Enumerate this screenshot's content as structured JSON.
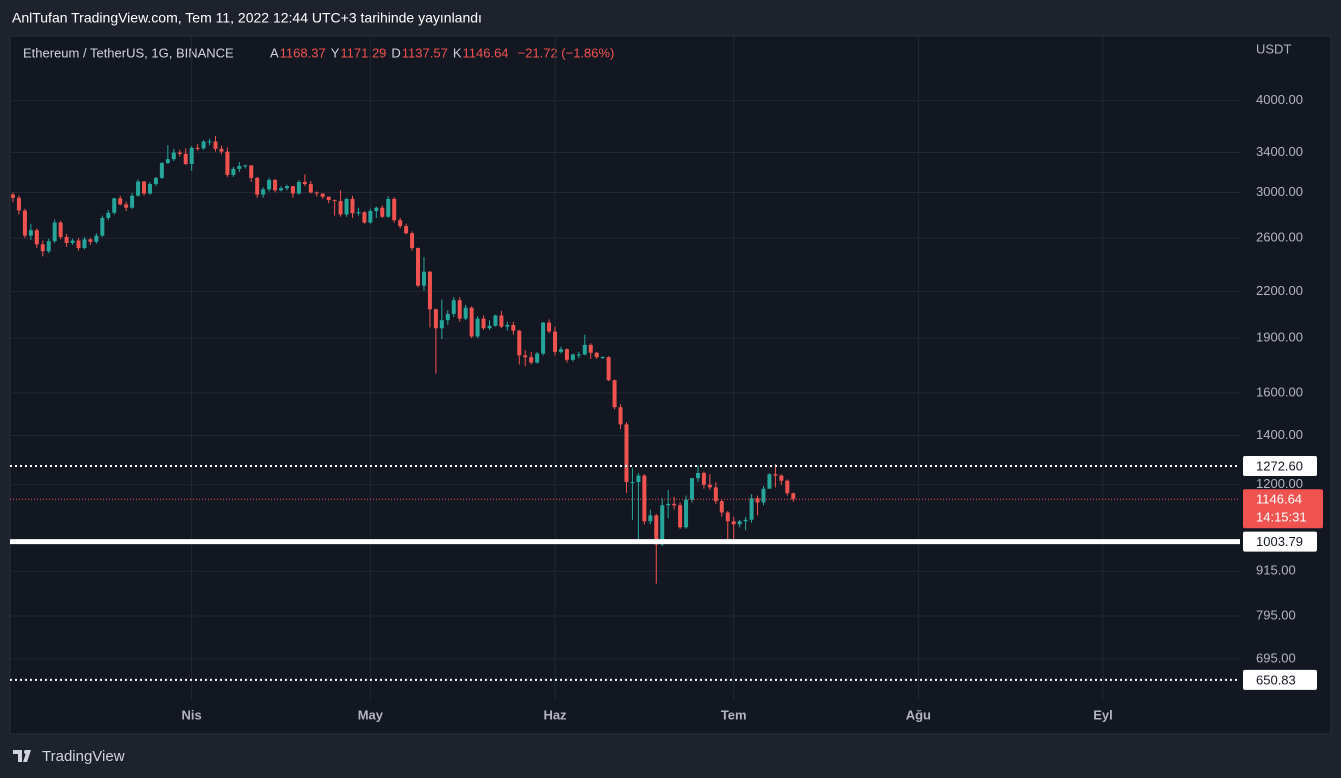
{
  "header": {
    "text": "AnlTufan TradingView.com, Tem 11, 2022 12:44 UTC+3 tarihinde yayınlandı"
  },
  "footer": {
    "brand": "TradingView"
  },
  "chart_data": {
    "type": "candlestick",
    "symbol": "Ethereum / TetherUS, 1G, BINANCE",
    "ohlc_legend": [
      {
        "key": "A",
        "value": "1168.37"
      },
      {
        "key": "Y",
        "value": "1171.29"
      },
      {
        "key": "D",
        "value": "1137.57"
      },
      {
        "key": "K",
        "value": "1146.64"
      }
    ],
    "change": "−21.72 (−1.86%)",
    "y_unit": "USDT",
    "log_scale": true,
    "grid": true,
    "up_color": "#26a69a",
    "down_color": "#ef5350",
    "xlim": [
      -0.5,
      206
    ],
    "xticks": [
      {
        "value": 30,
        "label": "Nis"
      },
      {
        "value": 60,
        "label": "May"
      },
      {
        "value": 91,
        "label": "Haz"
      },
      {
        "value": 121,
        "label": "Tem"
      },
      {
        "value": 152,
        "label": "Ağu"
      },
      {
        "value": 183,
        "label": "Eyl"
      }
    ],
    "ylim": [
      611,
      4915
    ],
    "yticks": [
      {
        "value": 4000,
        "label": "4000.00"
      },
      {
        "value": 3400,
        "label": "3400.00"
      },
      {
        "value": 3000,
        "label": "3000.00"
      },
      {
        "value": 2600,
        "label": "2600.00"
      },
      {
        "value": 2200,
        "label": "2200.00"
      },
      {
        "value": 1900,
        "label": "1900.00"
      },
      {
        "value": 1600,
        "label": "1600.00"
      },
      {
        "value": 1400,
        "label": "1400.00"
      },
      {
        "value": 1200,
        "label": "1200.00"
      },
      {
        "value": 915,
        "label": "915.00"
      },
      {
        "value": 795,
        "label": "795.00"
      },
      {
        "value": 695,
        "label": "695.00"
      }
    ],
    "hlines": [
      {
        "value": 1272.6,
        "label": "1272.60",
        "style": "dotted"
      },
      {
        "value": 1003.79,
        "style": "solid"
      },
      {
        "value": 650.83,
        "style": "dotted"
      }
    ],
    "last": {
      "value": 1146.64,
      "countdown": "14:15:31"
    },
    "open": [
      2980,
      2950,
      2835,
      2620,
      2665,
      2550,
      2495,
      2575,
      2730,
      2610,
      2560,
      2580,
      2520,
      2590,
      2570,
      2620,
      2770,
      2815,
      2945,
      2890,
      2860,
      2970,
      3105,
      2990,
      3080,
      3140,
      3290,
      3330,
      3400,
      3385,
      3280,
      3450,
      3445,
      3520,
      3520,
      3440,
      3410,
      3170,
      3230,
      3260,
      3265,
      3140,
      2980,
      3030,
      3120,
      3020,
      3040,
      3060,
      2990,
      3100,
      3080,
      3000,
      2990,
      2960,
      2930,
      2920,
      2800,
      2940,
      2810,
      2820,
      2730,
      2830,
      2860,
      2780,
      2940,
      2750,
      2700,
      2640,
      2520,
      2240,
      2340,
      2080,
      1960,
      2010,
      2050,
      2140,
      2020,
      2090,
      1910,
      2020,
      1960,
      1975,
      2040,
      1970,
      1980,
      1945,
      1800,
      1790,
      1760,
      1810,
      1995,
      1940,
      1820,
      1835,
      1775,
      1805,
      1805,
      1860,
      1815,
      1790,
      1790,
      1665,
      1530,
      1450,
      1210,
      1210,
      1235,
      1070,
      1090,
      995,
      1125,
      1130,
      1125,
      1050,
      1145,
      1225,
      1245,
      1200,
      1190,
      1140,
      1100,
      1070,
      1060,
      1070,
      1075,
      1150,
      1135,
      1185,
      1240,
      1235,
      1215,
      1168.37
    ],
    "high": [
      3000,
      2970,
      2850,
      2720,
      2680,
      2580,
      2595,
      2755,
      2745,
      2635,
      2595,
      2600,
      2610,
      2600,
      2640,
      2790,
      2840,
      2950,
      2970,
      2915,
      2995,
      3125,
      3110,
      3100,
      3150,
      3300,
      3480,
      3440,
      3430,
      3445,
      3470,
      3490,
      3535,
      3550,
      3580,
      3475,
      3455,
      3250,
      3300,
      3275,
      3270,
      3150,
      3050,
      3140,
      3130,
      3060,
      3075,
      3060,
      3120,
      3175,
      3110,
      3010,
      2990,
      2960,
      2935,
      3020,
      2950,
      2970,
      2860,
      2830,
      2850,
      2870,
      2880,
      2965,
      2955,
      2770,
      2720,
      2655,
      2525,
      2450,
      2345,
      2085,
      2145,
      2075,
      2160,
      2160,
      2110,
      2100,
      2035,
      2040,
      2010,
      2045,
      2070,
      2000,
      2000,
      1950,
      1830,
      1820,
      1820,
      2000,
      2015,
      1970,
      1850,
      1840,
      1810,
      1820,
      1920,
      1870,
      1820,
      1795,
      1795,
      1670,
      1545,
      1460,
      1265,
      1245,
      1240,
      1110,
      1095,
      1150,
      1180,
      1155,
      1135,
      1160,
      1225,
      1275,
      1250,
      1240,
      1210,
      1145,
      1105,
      1085,
      1075,
      1085,
      1165,
      1160,
      1195,
      1245,
      1280,
      1240,
      1220,
      1171.29
    ],
    "low": [
      2910,
      2800,
      2600,
      2585,
      2520,
      2455,
      2480,
      2560,
      2590,
      2530,
      2545,
      2500,
      2510,
      2545,
      2555,
      2610,
      2750,
      2800,
      2880,
      2830,
      2850,
      2960,
      2970,
      2980,
      3060,
      3130,
      3280,
      3310,
      3360,
      3270,
      3210,
      3420,
      3430,
      3480,
      3410,
      3380,
      3150,
      3150,
      3200,
      3235,
      3100,
      2950,
      2950,
      3010,
      3000,
      3010,
      3020,
      2950,
      2980,
      3060,
      2990,
      2960,
      2940,
      2900,
      2790,
      2780,
      2780,
      2770,
      2790,
      2720,
      2720,
      2770,
      2770,
      2770,
      2730,
      2680,
      2630,
      2500,
      2230,
      2205,
      1965,
      1700,
      1895,
      1980,
      2030,
      2000,
      2010,
      1900,
      1900,
      1950,
      1950,
      1970,
      1960,
      1945,
      1920,
      1750,
      1740,
      1750,
      1755,
      1800,
      1930,
      1800,
      1810,
      1760,
      1765,
      1785,
      1800,
      1780,
      1780,
      1780,
      1660,
      1520,
      1430,
      1170,
      1075,
      1010,
      1060,
      1060,
      880,
      990,
      1080,
      1110,
      1045,
      1045,
      1135,
      1210,
      1185,
      1180,
      1130,
      1085,
      1005,
      1000,
      1050,
      1040,
      1065,
      1090,
      1125,
      1185,
      1190,
      1200,
      1160,
      1137.57
    ],
    "close": [
      2950,
      2835,
      2620,
      2665,
      2550,
      2495,
      2575,
      2730,
      2610,
      2560,
      2580,
      2520,
      2590,
      2570,
      2620,
      2770,
      2815,
      2945,
      2890,
      2860,
      2970,
      3105,
      2990,
      3080,
      3140,
      3290,
      3330,
      3400,
      3385,
      3280,
      3450,
      3445,
      3520,
      3520,
      3440,
      3410,
      3170,
      3230,
      3260,
      3265,
      3140,
      2980,
      3030,
      3120,
      3020,
      3040,
      3060,
      2990,
      3100,
      3080,
      3000,
      2990,
      2960,
      2930,
      2920,
      2800,
      2940,
      2810,
      2820,
      2730,
      2830,
      2860,
      2780,
      2940,
      2750,
      2700,
      2640,
      2520,
      2240,
      2340,
      2080,
      1960,
      2010,
      2050,
      2140,
      2020,
      2090,
      1910,
      2020,
      1960,
      1975,
      2040,
      1970,
      1980,
      1945,
      1800,
      1790,
      1760,
      1810,
      1995,
      1940,
      1820,
      1835,
      1775,
      1805,
      1805,
      1860,
      1815,
      1790,
      1790,
      1665,
      1530,
      1450,
      1210,
      1210,
      1235,
      1070,
      1090,
      995,
      1125,
      1130,
      1125,
      1050,
      1145,
      1225,
      1245,
      1200,
      1190,
      1140,
      1100,
      1070,
      1060,
      1070,
      1075,
      1150,
      1135,
      1185,
      1240,
      1235,
      1215,
      1168.37,
      1146.64
    ]
  }
}
